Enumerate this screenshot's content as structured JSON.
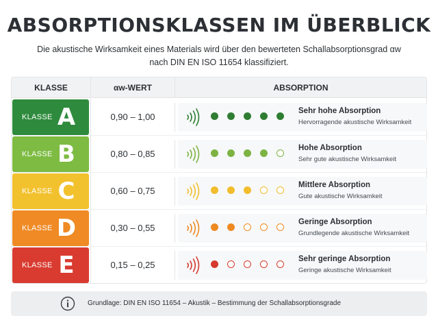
{
  "header": {
    "title": "ABSORPTIONSKLASSEN IM ÜBERBLICK",
    "subtitle_line1": "Die akustische Wirksamkeit eines Materials wird über den bewerteten Schallabsorptionsgrad αw",
    "subtitle_line2": "nach DIN EN ISO 11654 klassifiziert."
  },
  "table": {
    "columns": [
      "KLASSE",
      "αw-WERT",
      "ABSORPTION"
    ],
    "rows": [
      {
        "klasse_label": "KLASSE",
        "letter": "A",
        "range": "0,90 – 1,00",
        "title": "Sehr hohe Absorption",
        "desc": "Hervorragende akustische Wirksamkeit",
        "filled": 5,
        "total": 5,
        "color": "#2e8b3d",
        "dot_color": "#2e7d32"
      },
      {
        "klasse_label": "KLASSE",
        "letter": "B",
        "range": "0,80 – 0,85",
        "title": "Hohe Absorption",
        "desc": "Sehr gute akustische Wirksamkeit",
        "filled": 4,
        "total": 5,
        "color": "#7dbb42",
        "dot_color": "#7cb342"
      },
      {
        "klasse_label": "KLASSE",
        "letter": "C",
        "range": "0,60 – 0,75",
        "title": "Mittlere Absorption",
        "desc": "Gute akustische Wirksamkeit",
        "filled": 3,
        "total": 5,
        "color": "#f2c12e",
        "dot_color": "#f2bd2c"
      },
      {
        "klasse_label": "KLASSE",
        "letter": "D",
        "range": "0,30 – 0,55",
        "title": "Geringe Absorption",
        "desc": "Grundlegende akustische Wirksamkeit",
        "filled": 2,
        "total": 5,
        "color": "#ef8a24",
        "dot_color": "#ee8a22"
      },
      {
        "klasse_label": "KLASSE",
        "letter": "E",
        "range": "0,15 – 0,25",
        "title": "Sehr geringe Absorption",
        "desc": "Geringe akustische Wirksamkeit",
        "filled": 1,
        "total": 5,
        "color": "#d93b30",
        "dot_color": "#d63a2f"
      }
    ]
  },
  "footer": {
    "icon": "info-icon",
    "text": "Grundlage: DIN EN ISO 11654 – Akustik – Bestimmung der Schallabsorptionsgrade"
  }
}
